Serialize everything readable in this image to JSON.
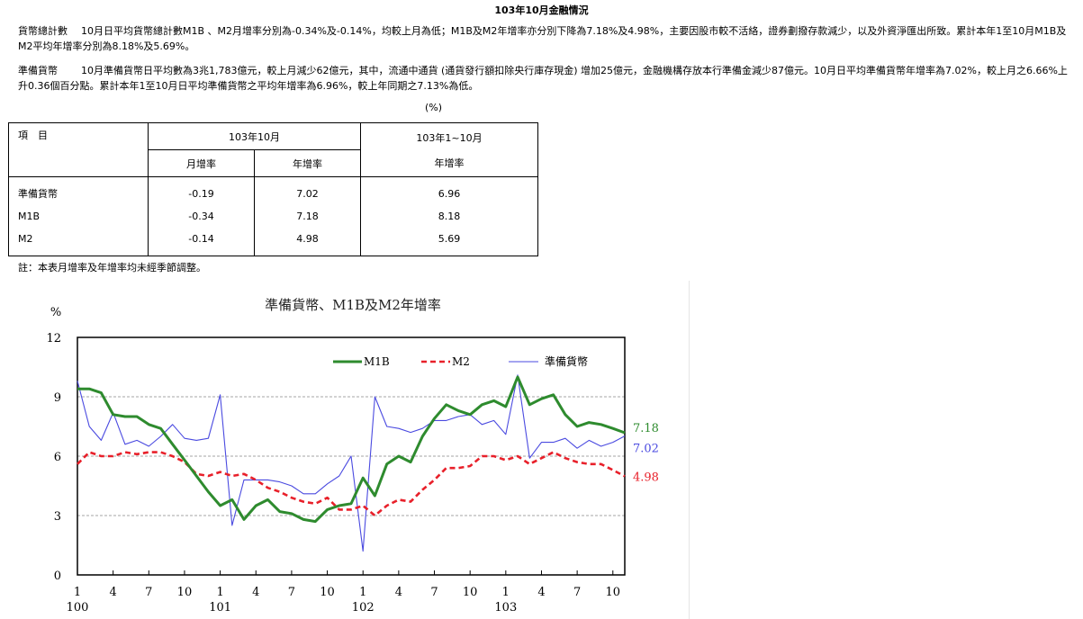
{
  "page_title": "103年10月金融情況",
  "paragraphs": [
    {
      "label": "貨幣總計數",
      "text": "10月日平均貨幣總計數M1B 、M2月增率分別為-0.34%及-0.14%，均較上月為低；M1B及M2年增率亦分別下降為7.18%及4.98%，主要因股市較不活絡，證券劃撥存款減少，以及外資淨匯出所致。累計本年1至10月M1B及M2平均年增率分別為8.18%及5.69%。"
    },
    {
      "label": "準備貨幣",
      "text": "10月準備貨幣日平均數為3兆1,783億元，較上月減少62億元，其中，流通中通貨 (通貨發行額扣除央行庫存現金) 增加25億元，金融機構存放本行準備金減少87億元。10月日平均準備貨幣年增率為7.02%，較上月之6.66%上升0.36個百分點。累計本年1至10月日平均準備貨幣之平均年增率為6.96%，較上年同期之7.13%為低。"
    }
  ],
  "table": {
    "unit": "(%)",
    "header_item": "項　目",
    "header_month": "103年10月",
    "header_cum": "103年1~10月",
    "col_mom": "月增率",
    "col_yoy": "年增率",
    "col_cum_yoy": "年增率",
    "rows": [
      {
        "name": "準備貨幣",
        "mom": "-0.19",
        "yoy": "7.02",
        "cum": "6.96"
      },
      {
        "name": "M1B",
        "mom": "-0.34",
        "yoy": "7.18",
        "cum": "8.18"
      },
      {
        "name": "M2",
        "mom": "-0.14",
        "yoy": "4.98",
        "cum": "5.69"
      }
    ]
  },
  "note": "註：本表月增率及年增率均未經季節調整。",
  "chart_data": {
    "type": "line",
    "title": "準備貨幣、M1B及M2年增率",
    "ylabel": "%",
    "ylim": [
      0,
      12
    ],
    "yticks": [
      0,
      3,
      6,
      9,
      12
    ],
    "grid": true,
    "legend_position": "top-right",
    "x_tick_labels": [
      "1",
      "4",
      "7",
      "10",
      "1",
      "4",
      "7",
      "10",
      "1",
      "4",
      "7",
      "10",
      "1",
      "4",
      "7",
      "10"
    ],
    "x_year_labels": [
      {
        "label": "100",
        "month_index": 0
      },
      {
        "label": "101",
        "month_index": 12
      },
      {
        "label": "102",
        "month_index": 24
      },
      {
        "label": "103",
        "month_index": 36
      }
    ],
    "series": [
      {
        "name": "M1B",
        "color": "#2e8b2e",
        "dash": "solid",
        "end_label": "7.18",
        "values": [
          9.4,
          9.4,
          9.2,
          8.1,
          8.0,
          8.0,
          7.6,
          7.4,
          6.6,
          5.8,
          5.0,
          4.2,
          3.5,
          3.8,
          2.8,
          3.5,
          3.8,
          3.2,
          3.1,
          2.8,
          2.7,
          3.3,
          3.5,
          3.6,
          4.9,
          4.0,
          5.6,
          6.0,
          5.7,
          7.0,
          7.9,
          8.6,
          8.3,
          8.1,
          8.6,
          8.8,
          8.5,
          10.0,
          8.6,
          8.9,
          9.1,
          8.1,
          7.5,
          7.7,
          7.6,
          7.4,
          7.18
        ]
      },
      {
        "name": "M2",
        "color": "#e8202a",
        "dash": "dashed",
        "end_label": "4.98",
        "values": [
          5.6,
          6.2,
          6.0,
          6.0,
          6.2,
          6.1,
          6.2,
          6.2,
          6.0,
          5.7,
          5.1,
          5.0,
          5.2,
          5.0,
          5.1,
          4.8,
          4.4,
          4.2,
          3.9,
          3.7,
          3.6,
          3.9,
          3.3,
          3.3,
          3.5,
          3.0,
          3.5,
          3.8,
          3.7,
          4.3,
          4.8,
          5.4,
          5.4,
          5.5,
          6.0,
          6.0,
          5.8,
          6.0,
          5.6,
          5.9,
          6.2,
          5.9,
          5.7,
          5.6,
          5.6,
          5.3,
          4.98
        ]
      },
      {
        "name": "準備貨幣",
        "color": "#4a4ae0",
        "dash": "solid",
        "end_label": "7.02",
        "values": [
          9.8,
          7.5,
          6.8,
          8.2,
          6.6,
          6.8,
          6.5,
          7.0,
          7.6,
          6.9,
          6.8,
          6.9,
          9.1,
          2.5,
          4.8,
          4.8,
          4.8,
          4.7,
          4.5,
          4.1,
          4.1,
          4.6,
          5.0,
          6.0,
          1.2,
          9.0,
          7.5,
          7.4,
          7.2,
          7.4,
          7.8,
          7.8,
          8.0,
          8.1,
          7.6,
          7.8,
          7.1,
          10.1,
          5.9,
          6.7,
          6.7,
          6.9,
          6.4,
          6.8,
          6.5,
          6.7,
          7.02
        ]
      }
    ]
  }
}
